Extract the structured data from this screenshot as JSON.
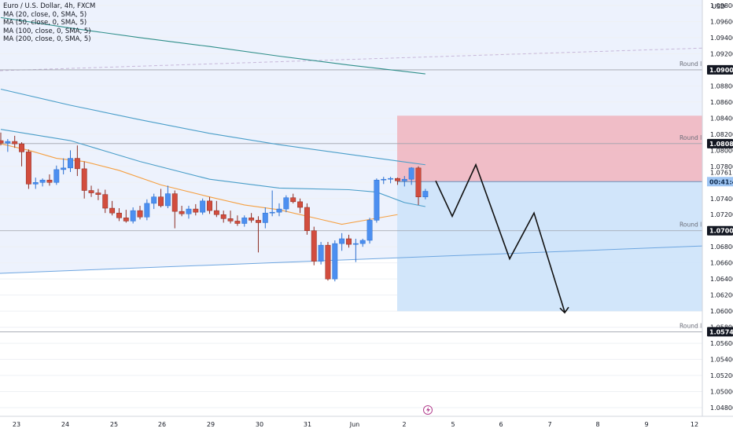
{
  "legend": {
    "symbol": "Euro / U.S. Dollar, 4h, FXCM",
    "ma20": "MA (20, close, 0, SMA, 5)",
    "ma50": "MA (50, close, 0, SMA, 5)",
    "ma100": "MA (100, close, 0, SMA, 5)",
    "ma200": "MA (200, close, 0, SMA, 5)"
  },
  "currency": "USD",
  "countdown": "00:41:44",
  "colors": {
    "up": "#4c8ff0",
    "down": "#d24d3e",
    "ma20": "#f5a042",
    "ma50": "#4a9ec9",
    "ma100": "#4a9ec9",
    "ma200": "#2f8f8a",
    "stop_zone": "#f0b4bd",
    "target_zone": "#cde3f9",
    "channel": "#edf2fd"
  },
  "chart_data": {
    "type": "candlestick",
    "y_axis_ticks": [
      "1.04800",
      "1.05000",
      "1.05200",
      "1.05400",
      "1.05600",
      "1.05800",
      "1.06000",
      "1.06200",
      "1.06400",
      "1.06600",
      "1.06800",
      "1.07000",
      "1.07200",
      "1.07400",
      "1.07600",
      "1.07800",
      "1.08000",
      "1.08200",
      "1.08400",
      "1.08600",
      "1.08800",
      "1.09000",
      "1.09200",
      "1.09400",
      "1.09600",
      "1.09800"
    ],
    "x_axis_ticks": [
      "23",
      "24",
      "25",
      "26",
      "29",
      "30",
      "31",
      "Jun",
      "2",
      "5",
      "6",
      "7",
      "8",
      "9",
      "12"
    ],
    "ylim": [
      1.047,
      1.1
    ],
    "price_labels": [
      {
        "price": 1.09,
        "text": "1.09000",
        "note": "Round level"
      },
      {
        "price": 1.08083,
        "text": "1.08083",
        "note": "Round level"
      },
      {
        "price": 1.07,
        "text": "1.07000",
        "note": "Round level"
      },
      {
        "price": 1.05743,
        "text": "1.05743",
        "note": "Round level"
      }
    ],
    "current_price": "1.07611",
    "candles": [
      {
        "o": 1.0812,
        "h": 1.0822,
        "l": 1.0806,
        "c": 1.0809
      },
      {
        "o": 1.0809,
        "h": 1.0814,
        "l": 1.0798,
        "c": 1.0811
      },
      {
        "o": 1.0811,
        "h": 1.0818,
        "l": 1.0803,
        "c": 1.0808
      },
      {
        "o": 1.0808,
        "h": 1.081,
        "l": 1.078,
        "c": 1.0798
      },
      {
        "o": 1.0798,
        "h": 1.0801,
        "l": 1.0752,
        "c": 1.0758
      },
      {
        "o": 1.0758,
        "h": 1.0766,
        "l": 1.0752,
        "c": 1.076
      },
      {
        "o": 1.076,
        "h": 1.0765,
        "l": 1.0755,
        "c": 1.0763
      },
      {
        "o": 1.0763,
        "h": 1.077,
        "l": 1.0756,
        "c": 1.076
      },
      {
        "o": 1.076,
        "h": 1.0781,
        "l": 1.0757,
        "c": 1.0776
      },
      {
        "o": 1.0776,
        "h": 1.079,
        "l": 1.077,
        "c": 1.0778
      },
      {
        "o": 1.0778,
        "h": 1.08,
        "l": 1.0773,
        "c": 1.079
      },
      {
        "o": 1.079,
        "h": 1.0806,
        "l": 1.0768,
        "c": 1.0777
      },
      {
        "o": 1.0777,
        "h": 1.0786,
        "l": 1.074,
        "c": 1.075
      },
      {
        "o": 1.075,
        "h": 1.0756,
        "l": 1.0742,
        "c": 1.0747
      },
      {
        "o": 1.0747,
        "h": 1.0752,
        "l": 1.0738,
        "c": 1.0745
      },
      {
        "o": 1.0745,
        "h": 1.0751,
        "l": 1.0722,
        "c": 1.0728
      },
      {
        "o": 1.0728,
        "h": 1.0737,
        "l": 1.0719,
        "c": 1.0722
      },
      {
        "o": 1.0722,
        "h": 1.0728,
        "l": 1.0712,
        "c": 1.0716
      },
      {
        "o": 1.0716,
        "h": 1.0726,
        "l": 1.071,
        "c": 1.0712
      },
      {
        "o": 1.0712,
        "h": 1.0729,
        "l": 1.0709,
        "c": 1.0725
      },
      {
        "o": 1.0725,
        "h": 1.0731,
        "l": 1.0714,
        "c": 1.0717
      },
      {
        "o": 1.0717,
        "h": 1.0739,
        "l": 1.0713,
        "c": 1.0734
      },
      {
        "o": 1.0734,
        "h": 1.0746,
        "l": 1.0727,
        "c": 1.0742
      },
      {
        "o": 1.0742,
        "h": 1.0752,
        "l": 1.0729,
        "c": 1.0731
      },
      {
        "o": 1.0731,
        "h": 1.0756,
        "l": 1.0728,
        "c": 1.0746
      },
      {
        "o": 1.0746,
        "h": 1.075,
        "l": 1.0703,
        "c": 1.0724
      },
      {
        "o": 1.0724,
        "h": 1.0731,
        "l": 1.0718,
        "c": 1.0721
      },
      {
        "o": 1.0721,
        "h": 1.0731,
        "l": 1.0715,
        "c": 1.0727
      },
      {
        "o": 1.0727,
        "h": 1.0733,
        "l": 1.0719,
        "c": 1.0723
      },
      {
        "o": 1.0723,
        "h": 1.074,
        "l": 1.072,
        "c": 1.0737
      },
      {
        "o": 1.0737,
        "h": 1.0742,
        "l": 1.0721,
        "c": 1.0725
      },
      {
        "o": 1.0725,
        "h": 1.0737,
        "l": 1.0717,
        "c": 1.072
      },
      {
        "o": 1.072,
        "h": 1.0725,
        "l": 1.071,
        "c": 1.0715
      },
      {
        "o": 1.0715,
        "h": 1.0725,
        "l": 1.0709,
        "c": 1.0712
      },
      {
        "o": 1.0712,
        "h": 1.0719,
        "l": 1.0706,
        "c": 1.0709
      },
      {
        "o": 1.0709,
        "h": 1.0719,
        "l": 1.0705,
        "c": 1.0716
      },
      {
        "o": 1.0716,
        "h": 1.0722,
        "l": 1.071,
        "c": 1.0713
      },
      {
        "o": 1.0713,
        "h": 1.0718,
        "l": 1.0673,
        "c": 1.071
      },
      {
        "o": 1.071,
        "h": 1.0729,
        "l": 1.0703,
        "c": 1.0722
      },
      {
        "o": 1.0722,
        "h": 1.075,
        "l": 1.0718,
        "c": 1.0723
      },
      {
        "o": 1.0723,
        "h": 1.0734,
        "l": 1.0718,
        "c": 1.0727
      },
      {
        "o": 1.0727,
        "h": 1.0744,
        "l": 1.0723,
        "c": 1.0741
      },
      {
        "o": 1.0741,
        "h": 1.0746,
        "l": 1.0734,
        "c": 1.0736
      },
      {
        "o": 1.0736,
        "h": 1.074,
        "l": 1.0722,
        "c": 1.0729
      },
      {
        "o": 1.0729,
        "h": 1.0734,
        "l": 1.0695,
        "c": 1.07
      },
      {
        "o": 1.07,
        "h": 1.0705,
        "l": 1.0657,
        "c": 1.0662
      },
      {
        "o": 1.0662,
        "h": 1.0686,
        "l": 1.0658,
        "c": 1.0682
      },
      {
        "o": 1.0682,
        "h": 1.0686,
        "l": 1.0638,
        "c": 1.064
      },
      {
        "o": 1.064,
        "h": 1.0688,
        "l": 1.0637,
        "c": 1.0684
      },
      {
        "o": 1.0684,
        "h": 1.0697,
        "l": 1.0675,
        "c": 1.069
      },
      {
        "o": 1.069,
        "h": 1.0695,
        "l": 1.0679,
        "c": 1.0683
      },
      {
        "o": 1.0683,
        "h": 1.069,
        "l": 1.0661,
        "c": 1.0684
      },
      {
        "o": 1.0684,
        "h": 1.069,
        "l": 1.068,
        "c": 1.0688
      },
      {
        "o": 1.0688,
        "h": 1.0716,
        "l": 1.0684,
        "c": 1.0713
      },
      {
        "o": 1.0713,
        "h": 1.0765,
        "l": 1.071,
        "c": 1.0763
      },
      {
        "o": 1.0763,
        "h": 1.0767,
        "l": 1.0758,
        "c": 1.0764
      },
      {
        "o": 1.0764,
        "h": 1.0767,
        "l": 1.0759,
        "c": 1.0765
      },
      {
        "o": 1.0765,
        "h": 1.0766,
        "l": 1.0757,
        "c": 1.0762
      },
      {
        "o": 1.0762,
        "h": 1.0768,
        "l": 1.0755,
        "c": 1.0764
      },
      {
        "o": 1.0764,
        "h": 1.0779,
        "l": 1.0757,
        "c": 1.0778
      },
      {
        "o": 1.0778,
        "h": 1.078,
        "l": 1.0732,
        "c": 1.0742
      },
      {
        "o": 1.0742,
        "h": 1.0752,
        "l": 1.0739,
        "c": 1.0749
      }
    ],
    "moving_averages": {
      "ma20": [
        [
          1.0808,
          0
        ],
        [
          1.08,
          4
        ],
        [
          1.079,
          8
        ],
        [
          1.0786,
          12
        ],
        [
          1.0775,
          17
        ],
        [
          1.0757,
          23
        ],
        [
          1.0742,
          30
        ],
        [
          1.0732,
          35
        ],
        [
          1.0726,
          40
        ],
        [
          1.0714,
          46
        ],
        [
          1.0708,
          49
        ],
        [
          1.0714,
          53
        ],
        [
          1.072,
          57
        ]
      ],
      "ma50": [
        [
          1.0826,
          0
        ],
        [
          1.0812,
          10
        ],
        [
          1.0786,
          20
        ],
        [
          1.0764,
          30
        ],
        [
          1.0753,
          40
        ],
        [
          1.0751,
          50
        ],
        [
          1.0748,
          54
        ],
        [
          1.0735,
          58
        ],
        [
          1.073,
          61
        ]
      ],
      "ma100": [
        [
          1.0876,
          0
        ],
        [
          1.0856,
          10
        ],
        [
          1.0838,
          20
        ],
        [
          1.0821,
          30
        ],
        [
          1.0807,
          40
        ],
        [
          1.0795,
          50
        ],
        [
          1.0782,
          61
        ]
      ],
      "ma200": [
        [
          1.0965,
          0
        ],
        [
          1.0952,
          10
        ],
        [
          1.094,
          20
        ],
        [
          1.0929,
          30
        ],
        [
          1.0917,
          40
        ],
        [
          1.0906,
          50
        ],
        [
          1.0895,
          61
        ]
      ]
    },
    "position": {
      "entry": 1.0761,
      "stop": 1.0843,
      "target": 1.06
    },
    "projection": [
      1.0762,
      1.0718,
      1.0782,
      1.0665,
      1.0722,
      1.0599
    ]
  }
}
